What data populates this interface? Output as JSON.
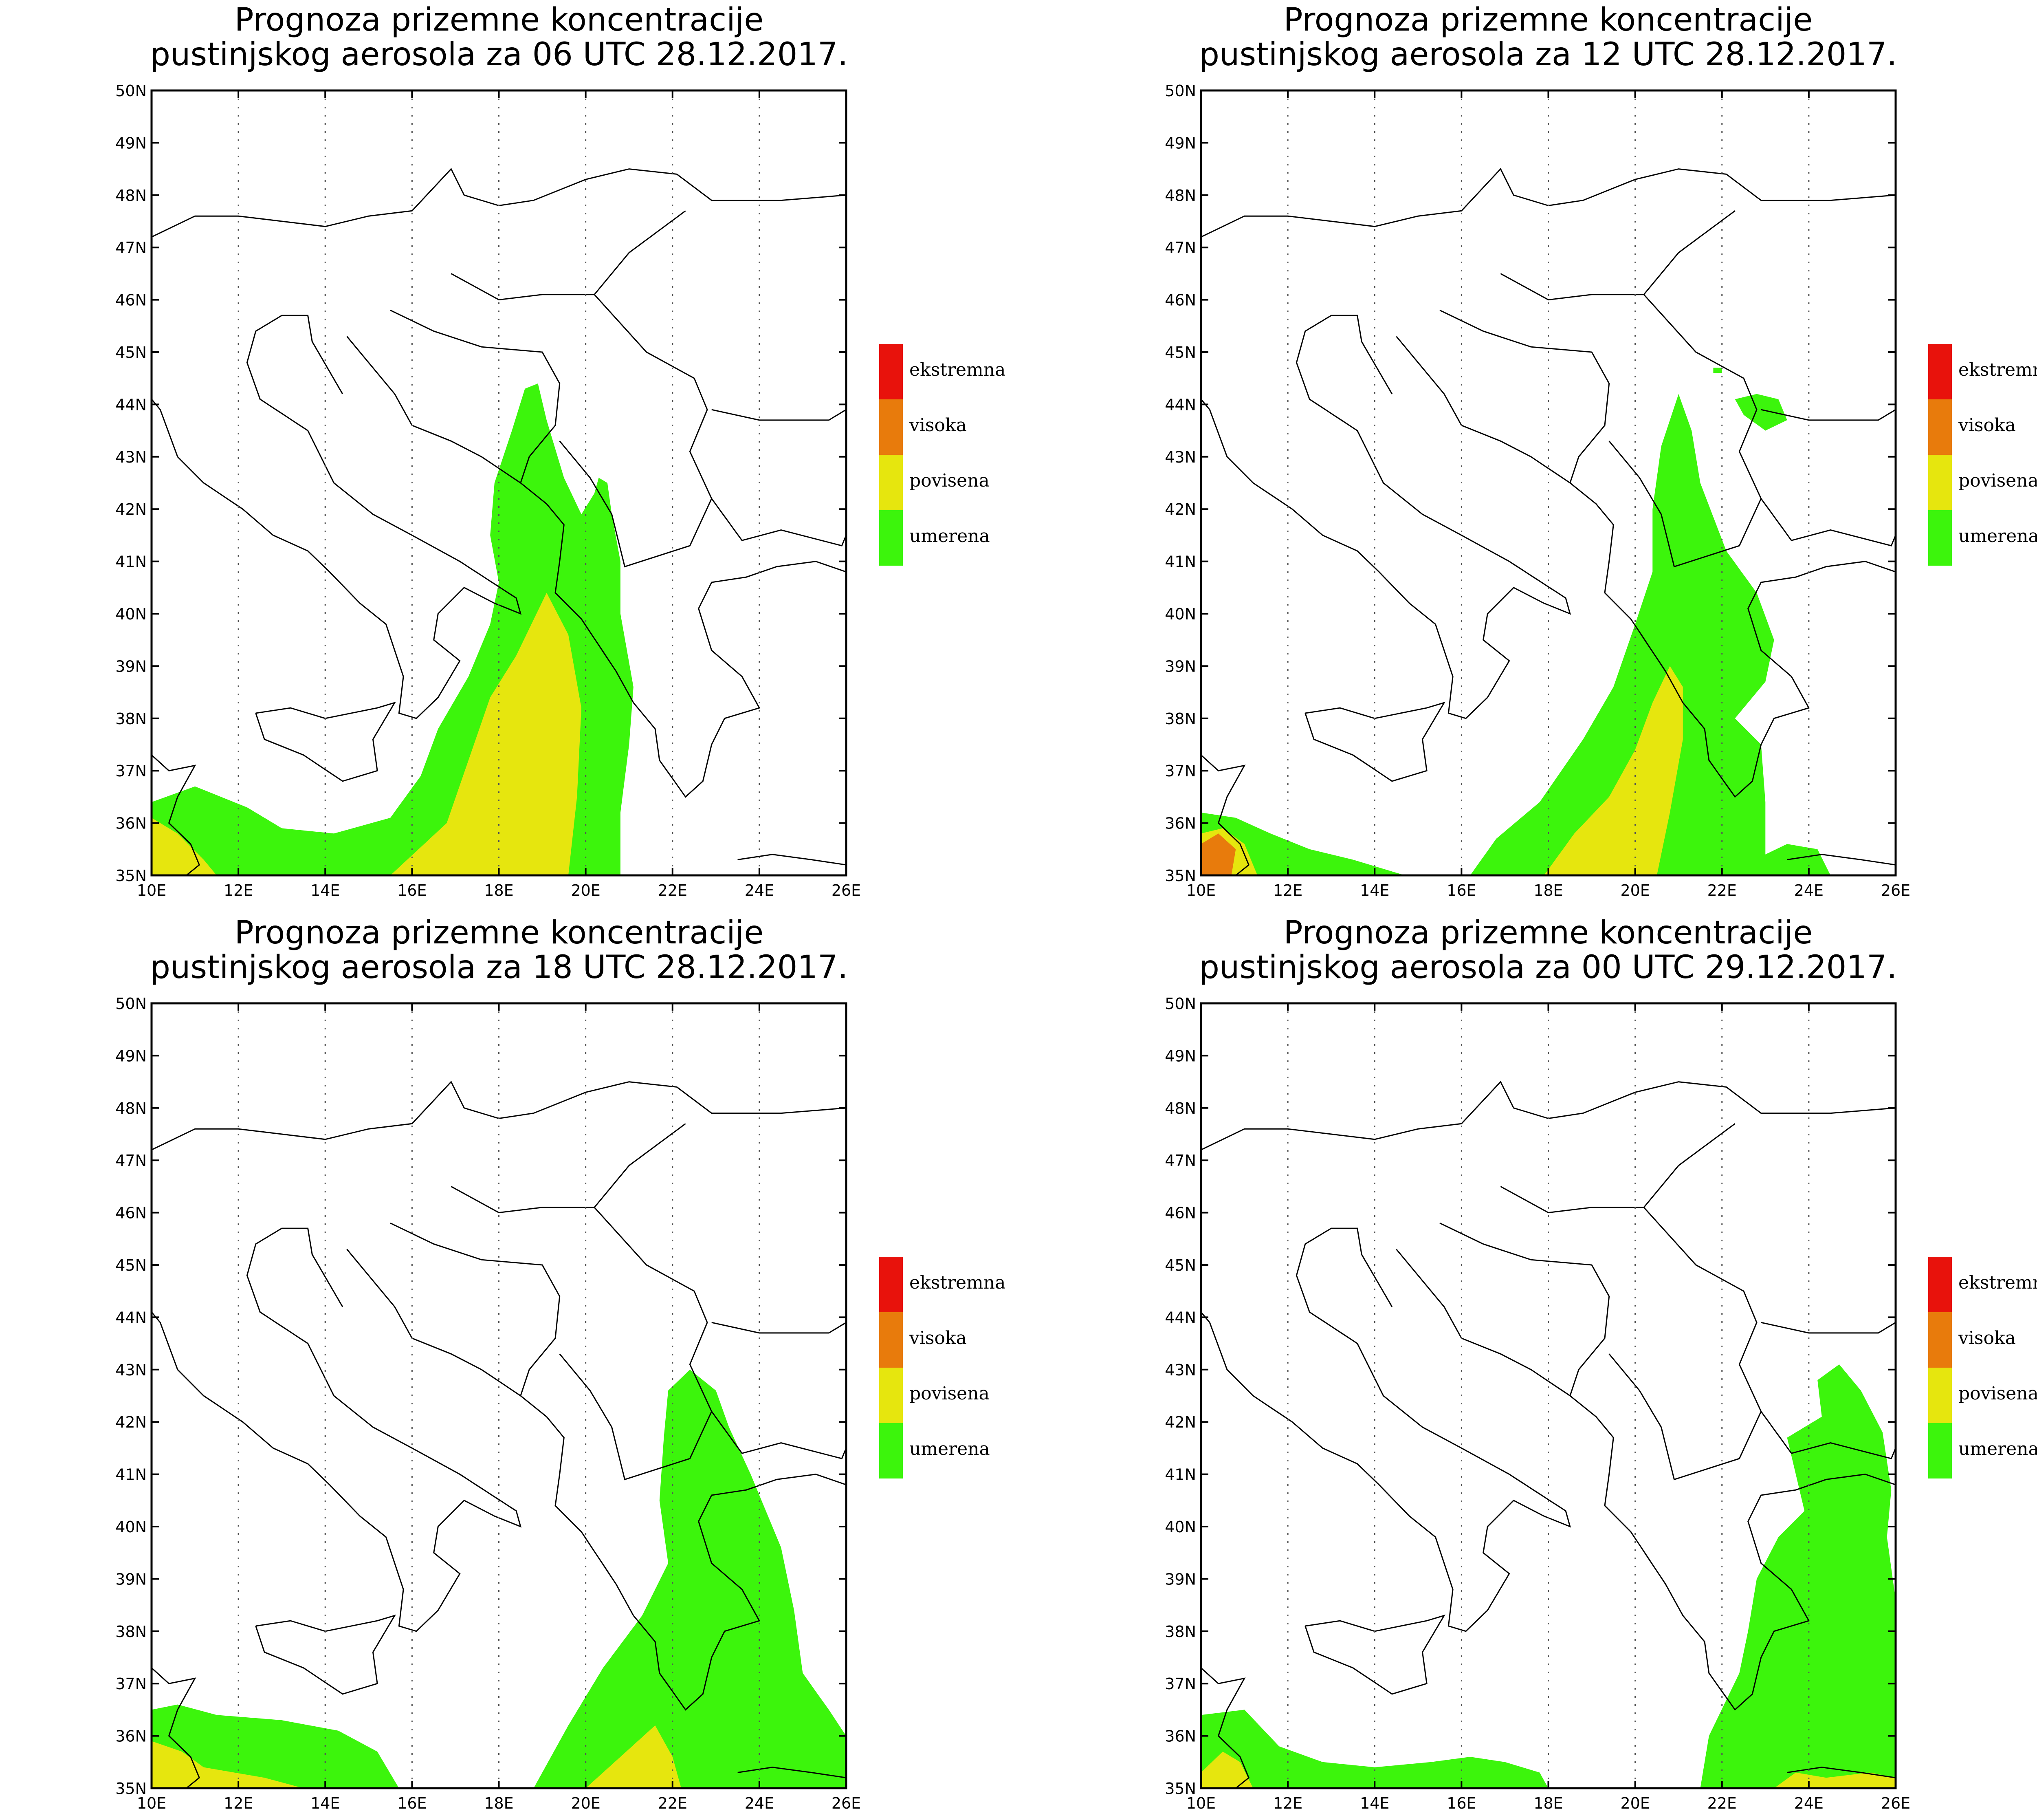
{
  "axes": {
    "lat_labels": [
      "35N",
      "36N",
      "37N",
      "38N",
      "39N",
      "40N",
      "41N",
      "42N",
      "43N",
      "44N",
      "45N",
      "46N",
      "47N",
      "48N",
      "49N",
      "50N"
    ],
    "lon_labels": [
      "10E",
      "12E",
      "14E",
      "16E",
      "18E",
      "20E",
      "22E",
      "24E",
      "26E"
    ],
    "lon_range": [
      10,
      26
    ],
    "lat_range": [
      35,
      50
    ],
    "grid": "dotted meridians every 2 degrees"
  },
  "legend": {
    "items": [
      {
        "label": "ekstremna",
        "color": "#e8120c"
      },
      {
        "label": "visoka",
        "color": "#e87b0c"
      },
      {
        "label": "povisena",
        "color": "#e6e60e"
      },
      {
        "label": "umerena",
        "color": "#3cf50c"
      }
    ]
  },
  "panels": [
    {
      "title_line1": "Prognoza prizemne koncentracije",
      "title_line2": "pustinjskog aerosola za 06 UTC 28.12.2017.",
      "regions": [
        {
          "level": "umerena",
          "points": [
            [
              10,
              35
            ],
            [
              10,
              36.4
            ],
            [
              11,
              36.7
            ],
            [
              12.2,
              36.3
            ],
            [
              13,
              35.9
            ],
            [
              14.2,
              35.8
            ],
            [
              15.5,
              36.1
            ],
            [
              16.2,
              36.9
            ],
            [
              16.6,
              37.8
            ],
            [
              17.3,
              38.8
            ],
            [
              17.8,
              39.8
            ],
            [
              18,
              40.6
            ],
            [
              17.8,
              41.5
            ],
            [
              17.9,
              42.5
            ],
            [
              18.3,
              43.5
            ],
            [
              18.6,
              44.3
            ],
            [
              18.9,
              44.4
            ],
            [
              19.1,
              43.7
            ],
            [
              19.5,
              42.6
            ],
            [
              19.9,
              41.9
            ],
            [
              20.2,
              42.3
            ],
            [
              20.3,
              42.6
            ],
            [
              20.5,
              42.5
            ],
            [
              20.6,
              41.9
            ],
            [
              20.8,
              41
            ],
            [
              20.8,
              40
            ],
            [
              21.1,
              38.6
            ],
            [
              21,
              37.5
            ],
            [
              20.8,
              36.2
            ],
            [
              20.8,
              35
            ],
            [
              10,
              35
            ]
          ]
        },
        {
          "level": "povisena",
          "points": [
            [
              10,
              35
            ],
            [
              10,
              36.1
            ],
            [
              10.6,
              35.8
            ],
            [
              11.2,
              35.3
            ],
            [
              11.5,
              35
            ],
            [
              10,
              35
            ]
          ]
        },
        {
          "level": "povisena",
          "points": [
            [
              15.5,
              35
            ],
            [
              16.8,
              36
            ],
            [
              17.3,
              37.2
            ],
            [
              17.8,
              38.4
            ],
            [
              18.4,
              39.2
            ],
            [
              19.1,
              40.4
            ],
            [
              19.6,
              39.6
            ],
            [
              19.9,
              38.2
            ],
            [
              19.8,
              36.5
            ],
            [
              19.6,
              35
            ],
            [
              15.5,
              35
            ]
          ]
        }
      ]
    },
    {
      "title_line1": "Prognoza prizemne koncentracije",
      "title_line2": "pustinjskog aerosola za 12 UTC 28.12.2017.",
      "regions": [
        {
          "level": "umerena",
          "points": [
            [
              10,
              35
            ],
            [
              10,
              36.2
            ],
            [
              10.8,
              36.1
            ],
            [
              11.6,
              35.8
            ],
            [
              12.5,
              35.5
            ],
            [
              13.5,
              35.3
            ],
            [
              14.7,
              35
            ],
            [
              10,
              35
            ]
          ]
        },
        {
          "level": "umerena",
          "points": [
            [
              16.2,
              35
            ],
            [
              16.8,
              35.7
            ],
            [
              17.8,
              36.4
            ],
            [
              18.8,
              37.6
            ],
            [
              19.5,
              38.6
            ],
            [
              20,
              39.8
            ],
            [
              20.4,
              40.8
            ],
            [
              20.4,
              42
            ],
            [
              20.6,
              43.2
            ],
            [
              21,
              44.2
            ],
            [
              21.3,
              43.5
            ],
            [
              21.5,
              42.5
            ],
            [
              22.1,
              41.2
            ],
            [
              22.8,
              40.4
            ],
            [
              23.2,
              39.5
            ],
            [
              23,
              38.7
            ],
            [
              22.3,
              38
            ],
            [
              22.9,
              37.5
            ],
            [
              23,
              36.4
            ],
            [
              23,
              35.4
            ],
            [
              23.5,
              35.6
            ],
            [
              24.2,
              35.5
            ],
            [
              24.5,
              35
            ],
            [
              16.2,
              35
            ]
          ]
        },
        {
          "level": "umerena",
          "points": [
            [
              22.3,
              44.1
            ],
            [
              22.5,
              43.8
            ],
            [
              23,
              43.5
            ],
            [
              23.5,
              43.7
            ],
            [
              23.3,
              44.1
            ],
            [
              22.8,
              44.2
            ],
            [
              22.3,
              44.1
            ]
          ]
        },
        {
          "level": "umerena",
          "points": [
            [
              21.8,
              44.7
            ],
            [
              22,
              44.7
            ],
            [
              22,
              44.6
            ],
            [
              21.8,
              44.6
            ],
            [
              21.8,
              44.7
            ]
          ]
        },
        {
          "level": "povisena",
          "points": [
            [
              10,
              35
            ],
            [
              10,
              35.8
            ],
            [
              10.5,
              35.9
            ],
            [
              11,
              35.6
            ],
            [
              11.3,
              35
            ],
            [
              10,
              35
            ]
          ]
        },
        {
          "level": "visoka",
          "points": [
            [
              10,
              35
            ],
            [
              10,
              35.6
            ],
            [
              10.4,
              35.8
            ],
            [
              10.8,
              35.5
            ],
            [
              10.7,
              35
            ],
            [
              10,
              35
            ]
          ]
        },
        {
          "level": "povisena",
          "points": [
            [
              17.9,
              35
            ],
            [
              18.6,
              35.8
            ],
            [
              19.4,
              36.5
            ],
            [
              20,
              37.4
            ],
            [
              20.4,
              38.3
            ],
            [
              20.8,
              39
            ],
            [
              21.1,
              38.6
            ],
            [
              21.1,
              37.6
            ],
            [
              20.8,
              36.2
            ],
            [
              20.5,
              35
            ],
            [
              17.9,
              35
            ]
          ]
        }
      ]
    },
    {
      "title_line1": "Prognoza prizemne koncentracije",
      "title_line2": "pustinjskog aerosola za 18 UTC 28.12.2017.",
      "regions": [
        {
          "level": "umerena",
          "points": [
            [
              10,
              35
            ],
            [
              10,
              36.5
            ],
            [
              10.6,
              36.6
            ],
            [
              11.5,
              36.4
            ],
            [
              13,
              36.3
            ],
            [
              14.3,
              36.1
            ],
            [
              15.2,
              35.7
            ],
            [
              15.7,
              35
            ],
            [
              10,
              35
            ]
          ]
        },
        {
          "level": "povisena",
          "points": [
            [
              10,
              35
            ],
            [
              10,
              35.9
            ],
            [
              10.7,
              35.7
            ],
            [
              11.2,
              35.4
            ],
            [
              12.6,
              35.2
            ],
            [
              13.5,
              35
            ],
            [
              10,
              35
            ]
          ]
        },
        {
          "level": "umerena",
          "points": [
            [
              18.8,
              35
            ],
            [
              19.6,
              36.2
            ],
            [
              20.4,
              37.3
            ],
            [
              21.3,
              38.3
            ],
            [
              21.9,
              39.3
            ],
            [
              21.7,
              40.5
            ],
            [
              21.8,
              41.7
            ],
            [
              21.9,
              42.6
            ],
            [
              22.4,
              43
            ],
            [
              23,
              42.6
            ],
            [
              23.3,
              41.9
            ],
            [
              23.8,
              41
            ],
            [
              24.5,
              39.6
            ],
            [
              24.8,
              38.4
            ],
            [
              25,
              37.2
            ],
            [
              25.6,
              36.5
            ],
            [
              26,
              36
            ],
            [
              26,
              35
            ],
            [
              18.8,
              35
            ]
          ]
        },
        {
          "level": "povisena",
          "points": [
            [
              20,
              35
            ],
            [
              20.8,
              35.6
            ],
            [
              21.6,
              36.2
            ],
            [
              22,
              35.6
            ],
            [
              22.2,
              35
            ],
            [
              20,
              35
            ]
          ]
        }
      ]
    },
    {
      "title_line1": "Prognoza prizemne koncentracije",
      "title_line2": "pustinjskog aerosola za 00 UTC 29.12.2017.",
      "regions": [
        {
          "level": "umerena",
          "points": [
            [
              10,
              35
            ],
            [
              10,
              36.4
            ],
            [
              11,
              36.5
            ],
            [
              11.8,
              35.8
            ],
            [
              12.8,
              35.5
            ],
            [
              14,
              35.4
            ],
            [
              15.3,
              35.5
            ],
            [
              16.2,
              35.6
            ],
            [
              17,
              35.5
            ],
            [
              17.8,
              35.3
            ],
            [
              18,
              35
            ],
            [
              10,
              35
            ]
          ]
        },
        {
          "level": "povisena",
          "points": [
            [
              10,
              35
            ],
            [
              10,
              35.3
            ],
            [
              10.5,
              35.7
            ],
            [
              10.9,
              35.5
            ],
            [
              11.2,
              35
            ],
            [
              10,
              35
            ]
          ]
        },
        {
          "level": "umerena",
          "points": [
            [
              21.5,
              35
            ],
            [
              21.7,
              36
            ],
            [
              22.4,
              37.2
            ],
            [
              22.6,
              38
            ],
            [
              22.8,
              39
            ],
            [
              23.3,
              39.8
            ],
            [
              23.9,
              40.3
            ],
            [
              23.7,
              41
            ],
            [
              23.5,
              41.7
            ],
            [
              24.3,
              42.1
            ],
            [
              24.2,
              42.8
            ],
            [
              24.7,
              43.1
            ],
            [
              25.2,
              42.6
            ],
            [
              25.7,
              41.8
            ],
            [
              25.9,
              40.7
            ],
            [
              25.8,
              39.8
            ],
            [
              26,
              38.6
            ],
            [
              26,
              35
            ],
            [
              21.5,
              35
            ]
          ]
        },
        {
          "level": "povisena",
          "points": [
            [
              23.2,
              35
            ],
            [
              23.7,
              35.3
            ],
            [
              24.4,
              35.2
            ],
            [
              25.4,
              35.3
            ],
            [
              26,
              35.2
            ],
            [
              26,
              35
            ],
            [
              23.2,
              35
            ]
          ]
        }
      ]
    }
  ]
}
